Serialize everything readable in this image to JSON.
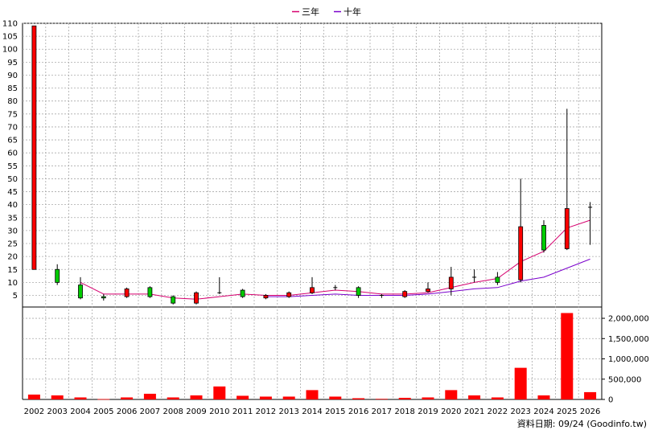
{
  "chart_data": {
    "type": "candlestick+line+bar",
    "legend": [
      {
        "name": "三年",
        "color": "#d6006f"
      },
      {
        "name": "十年",
        "color": "#7a00cc"
      }
    ],
    "categories": [
      "2002",
      "2003",
      "2004",
      "2005",
      "2006",
      "2007",
      "2008",
      "2009",
      "2010",
      "2011",
      "2012",
      "2013",
      "2014",
      "2015",
      "2016",
      "2017",
      "2018",
      "2019",
      "2020",
      "2021",
      "2022",
      "2023",
      "2024",
      "2025",
      "2026"
    ],
    "price_axis": {
      "ylim": [
        0,
        110
      ],
      "ticks": [
        5,
        10,
        15,
        20,
        25,
        30,
        35,
        40,
        45,
        50,
        55,
        60,
        65,
        70,
        75,
        80,
        85,
        90,
        95,
        100,
        105,
        110
      ]
    },
    "volume_axis": {
      "ylim": [
        0,
        2100000
      ],
      "ticks": [
        0,
        500000,
        1000000,
        1500000,
        2000000
      ],
      "tick_labels": [
        "0",
        "500,000",
        "1,000,000",
        "1,500,000",
        "2,000,000"
      ]
    },
    "candles": [
      {
        "o": 15,
        "c": 109,
        "h": 109,
        "l": 15
      },
      {
        "o": 15,
        "c": 10,
        "h": 17,
        "l": 9
      },
      {
        "o": 9,
        "c": 4,
        "h": 12,
        "l": 3.5
      },
      {
        "o": 4.5,
        "c": 4,
        "h": 5.5,
        "l": 3
      },
      {
        "o": 4.5,
        "c": 7.5,
        "h": 8,
        "l": 4
      },
      {
        "o": 8,
        "c": 4.5,
        "h": 8.5,
        "l": 4
      },
      {
        "o": 4.5,
        "c": 2,
        "h": 5,
        "l": 1.5
      },
      {
        "o": 2,
        "c": 6,
        "h": 6.5,
        "l": 1.5
      },
      {
        "o": 6,
        "c": 6,
        "h": 12,
        "l": 5.5
      },
      {
        "o": 7,
        "c": 4.5,
        "h": 7.5,
        "l": 4
      },
      {
        "o": 4,
        "c": 5,
        "h": 5.5,
        "l": 3.5
      },
      {
        "o": 4.5,
        "c": 6,
        "h": 6.5,
        "l": 4
      },
      {
        "o": 6,
        "c": 8,
        "h": 12,
        "l": 5.5
      },
      {
        "o": 8,
        "c": 8,
        "h": 9,
        "l": 7
      },
      {
        "o": 8,
        "c": 5,
        "h": 8.5,
        "l": 4
      },
      {
        "o": 5,
        "c": 5,
        "h": 5.5,
        "l": 4
      },
      {
        "o": 4.5,
        "c": 6.5,
        "h": 7,
        "l": 4
      },
      {
        "o": 6.5,
        "c": 7.5,
        "h": 10,
        "l": 6
      },
      {
        "o": 7.5,
        "c": 12,
        "h": 16,
        "l": 5
      },
      {
        "o": 12,
        "c": 12,
        "h": 15,
        "l": 10
      },
      {
        "o": 12,
        "c": 10,
        "h": 14,
        "l": 9
      },
      {
        "o": 11,
        "c": 31.5,
        "h": 50,
        "l": 10
      },
      {
        "o": 32,
        "c": 22.5,
        "h": 34,
        "l": 21.5
      },
      {
        "o": 23,
        "c": 38.5,
        "h": 77,
        "l": 22.5
      },
      {
        "o": 39,
        "c": 39,
        "h": 41,
        "l": 24.5
      }
    ],
    "ma3": [
      null,
      null,
      10,
      5.5,
      5.5,
      5.5,
      4,
      3.5,
      4.5,
      5.5,
      5,
      5,
      6,
      7,
      6.5,
      5.5,
      5.5,
      6,
      8,
      10,
      11.5,
      18,
      22,
      31,
      34
    ],
    "ma10": [
      null,
      null,
      null,
      null,
      null,
      null,
      null,
      null,
      null,
      null,
      4.5,
      4.5,
      5,
      5.5,
      5,
      5,
      5,
      5.5,
      6.5,
      7.5,
      8,
      10.5,
      12,
      15.5,
      19
    ],
    "volume": [
      120000,
      100000,
      50000,
      10000,
      50000,
      140000,
      50000,
      100000,
      320000,
      90000,
      70000,
      70000,
      230000,
      70000,
      30000,
      15000,
      40000,
      50000,
      230000,
      100000,
      50000,
      780000,
      100000,
      2130000,
      180000
    ],
    "footer": "資料日期: 09/24 (Goodinfo.tw)"
  }
}
